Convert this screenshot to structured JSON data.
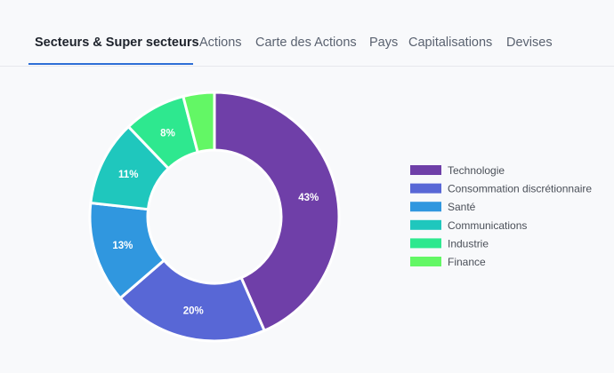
{
  "tabs": [
    {
      "label": "Secteurs & Super secteurs",
      "active": true
    },
    {
      "label": "Actions",
      "active": false
    },
    {
      "label": "Carte des Actions",
      "active": false
    },
    {
      "label": "Pays",
      "active": false
    },
    {
      "label": "Capitalisations",
      "active": false
    },
    {
      "label": "Devises",
      "active": false
    }
  ],
  "chart_data": {
    "type": "pie",
    "donut": true,
    "legend_position": "right",
    "categories": [
      "Technologie",
      "Consommation discrétionnaire",
      "Santé",
      "Communications",
      "Industrie",
      "Finance"
    ],
    "values": [
      43,
      20,
      13,
      11,
      8,
      4
    ],
    "labels": [
      "43%",
      "20%",
      "13%",
      "11%",
      "8%",
      ""
    ],
    "colors": [
      "#6f3fa8",
      "#5867d6",
      "#3097df",
      "#1fc7bd",
      "#2ee88f",
      "#63f765"
    ]
  }
}
